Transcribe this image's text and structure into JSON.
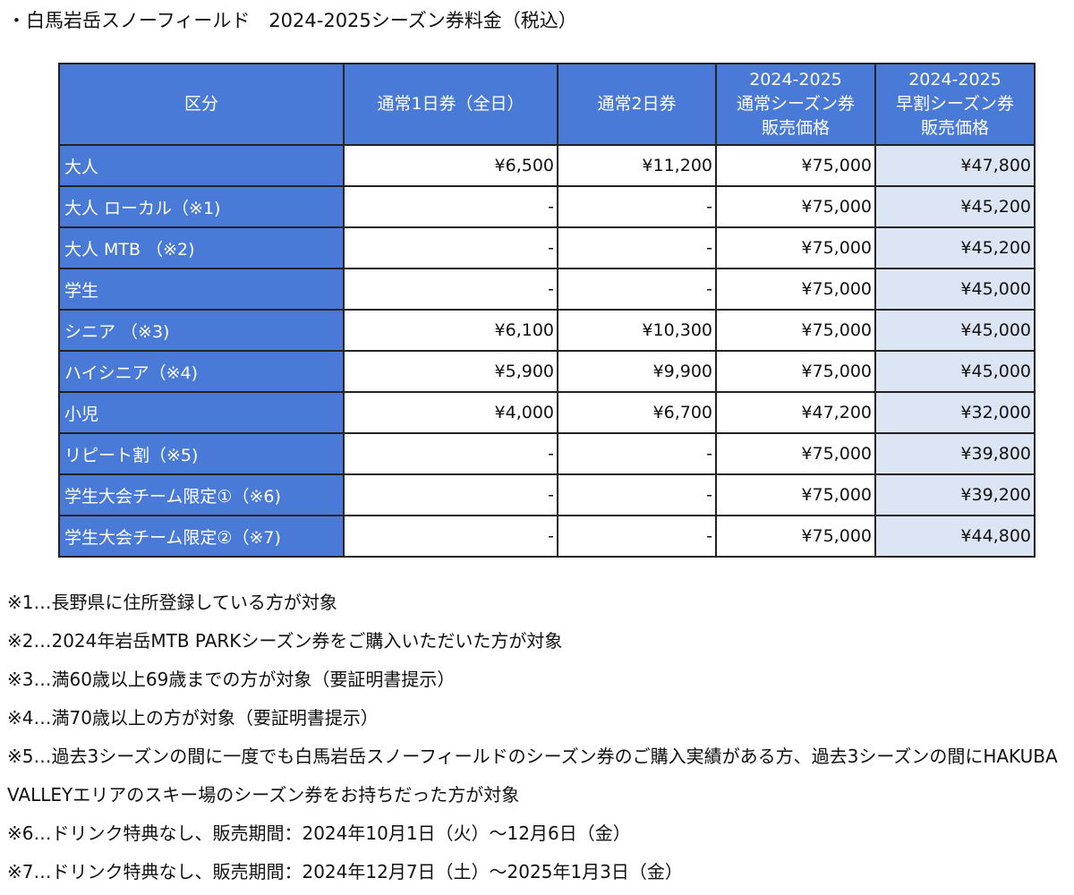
{
  "title": "・白馬岩岳スノーフィールド　2024-2025シーズン券料金（税込）",
  "table": {
    "headers": [
      [
        "区分"
      ],
      [
        "通常1日券（全日）"
      ],
      [
        "通常2日券"
      ],
      [
        "2024-2025",
        "通常シーズン券",
        "販売価格"
      ],
      [
        "2024-2025",
        "早割シーズン券",
        "販売価格"
      ]
    ],
    "rows": [
      {
        "label": "大人",
        "cells": [
          "¥6,500",
          "¥11,200",
          "¥75,000",
          "¥47,800"
        ]
      },
      {
        "label": "大人 ローカル（※1)",
        "cells": [
          "-",
          "-",
          "¥75,000",
          "¥45,200"
        ]
      },
      {
        "label": "大人 MTB （※2)",
        "cells": [
          "-",
          "-",
          "¥75,000",
          "¥45,200"
        ]
      },
      {
        "label": "学生",
        "cells": [
          "-",
          "-",
          "¥75,000",
          "¥45,000"
        ]
      },
      {
        "label": "シニア （※3)",
        "cells": [
          "¥6,100",
          "¥10,300",
          "¥75,000",
          "¥45,000"
        ]
      },
      {
        "label": "ハイシニア（※4)",
        "cells": [
          "¥5,900",
          "¥9,900",
          "¥75,000",
          "¥45,000"
        ]
      },
      {
        "label": "小児",
        "cells": [
          "¥4,000",
          "¥6,700",
          "¥47,200",
          "¥32,000"
        ]
      },
      {
        "label": "リピート割（※5)",
        "cells": [
          "-",
          "-",
          "¥75,000",
          "¥39,800"
        ]
      },
      {
        "label": "学生大会チーム限定①（※6)",
        "cells": [
          "-",
          "-",
          "¥75,000",
          "¥39,200"
        ]
      },
      {
        "label": "学生大会チーム限定②（※7)",
        "cells": [
          "-",
          "-",
          "¥75,000",
          "¥44,800"
        ]
      }
    ]
  },
  "notes": [
    "※1…長野県に住所登録している方が対象",
    "※2…2024年岩岳MTB PARKシーズン券をご購入いただいた方が対象",
    "※3…満60歳以上69歳までの方が対象（要証明書提示）",
    "※4…満70歳以上の方が対象（要証明書提示）",
    "※5…過去3シーズンの間に一度でも白馬岩岳スノーフィールドのシーズン券のご購入実績がある方、過去3シーズンの間にHAKUBA VALLEYエリアのスキー場のシーズン券をお持ちだった方が対象",
    "※6…ドリンク特典なし、販売期間：2024年10月1日（火）～12月6日（金）",
    "※7…ドリンク特典なし、販売期間：2024年12月7日（土）～2025年1月3日（金）"
  ],
  "colors": {
    "header_blue": "#4a7ad8",
    "early_column_bg": "#dbe5f3",
    "border": "#222222"
  }
}
